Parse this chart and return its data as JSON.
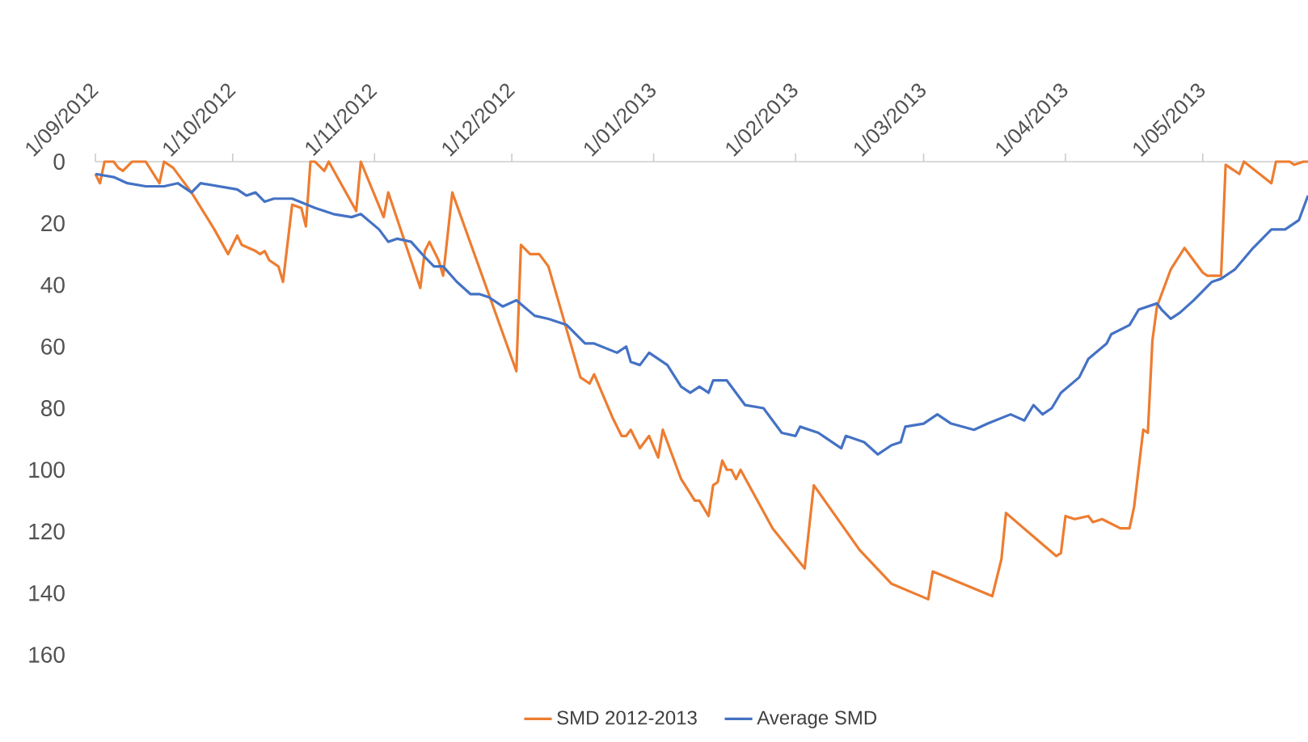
{
  "chart_data": {
    "type": "line",
    "xlim": [
      "2012-09-01",
      "2013-05-24"
    ],
    "ylim": [
      160,
      0
    ],
    "yticks": [
      0,
      20,
      40,
      60,
      80,
      100,
      120,
      140,
      160
    ],
    "xticks": [
      {
        "value": "2012-09-01",
        "label": "1/09/2012"
      },
      {
        "value": "2012-10-01",
        "label": "1/10/2012"
      },
      {
        "value": "2012-11-01",
        "label": "1/11/2012"
      },
      {
        "value": "2012-12-01",
        "label": "1/12/2012"
      },
      {
        "value": "2013-01-01",
        "label": "1/01/2013"
      },
      {
        "value": "2013-02-01",
        "label": "1/02/2013"
      },
      {
        "value": "2013-03-01",
        "label": "1/03/2013"
      },
      {
        "value": "2013-04-01",
        "label": "1/04/2013"
      },
      {
        "value": "2013-05-01",
        "label": "1/05/2013"
      }
    ],
    "legend": "bottom",
    "series": [
      {
        "name": "SMD 2012-2013",
        "color": "#ed7d31",
        "x": [
          "2012-09-01",
          "2012-09-02",
          "2012-09-03",
          "2012-09-05",
          "2012-09-06",
          "2012-09-07",
          "2012-09-09",
          "2012-09-12",
          "2012-09-15",
          "2012-09-16",
          "2012-09-18",
          "2012-09-22",
          "2012-09-27",
          "2012-09-30",
          "2012-10-02",
          "2012-10-03",
          "2012-10-06",
          "2012-10-07",
          "2012-10-08",
          "2012-10-09",
          "2012-10-11",
          "2012-10-12",
          "2012-10-14",
          "2012-10-16",
          "2012-10-17",
          "2012-10-18",
          "2012-10-19",
          "2012-10-21",
          "2012-10-22",
          "2012-10-28",
          "2012-10-29",
          "2012-11-03",
          "2012-11-04",
          "2012-11-11",
          "2012-11-12",
          "2012-11-13",
          "2012-11-15",
          "2012-11-16",
          "2012-11-18",
          "2012-12-02",
          "2012-12-03",
          "2012-12-05",
          "2012-12-07",
          "2012-12-09",
          "2012-12-16",
          "2012-12-18",
          "2012-12-19",
          "2012-12-23",
          "2012-12-25",
          "2012-12-26",
          "2012-12-27",
          "2012-12-29",
          "2012-12-31",
          "2013-01-02",
          "2013-01-03",
          "2013-01-07",
          "2013-01-10",
          "2013-01-11",
          "2013-01-13",
          "2013-01-14",
          "2013-01-15",
          "2013-01-16",
          "2013-01-17",
          "2013-01-18",
          "2013-01-19",
          "2013-01-20",
          "2013-01-27",
          "2013-02-03",
          "2013-02-05",
          "2013-02-15",
          "2013-02-22",
          "2013-03-02",
          "2013-03-03",
          "2013-03-16",
          "2013-03-18",
          "2013-03-19",
          "2013-03-30",
          "2013-03-31",
          "2013-04-01",
          "2013-04-03",
          "2013-04-06",
          "2013-04-07",
          "2013-04-09",
          "2013-04-13",
          "2013-04-15",
          "2013-04-16",
          "2013-04-18",
          "2013-04-19",
          "2013-04-20",
          "2013-04-21",
          "2013-04-24",
          "2013-04-27",
          "2013-05-01",
          "2013-05-02",
          "2013-05-05",
          "2013-05-06",
          "2013-05-09",
          "2013-05-10",
          "2013-05-16",
          "2013-05-17",
          "2013-05-20",
          "2013-05-21",
          "2013-05-23",
          "2013-05-24"
        ],
        "values": [
          4,
          7,
          0,
          0,
          2,
          3,
          0,
          0,
          7,
          0,
          2,
          10,
          22,
          30,
          24,
          27,
          29,
          30,
          29,
          32,
          34,
          39,
          14,
          15,
          21,
          0,
          0,
          3,
          0,
          16,
          0,
          18,
          10,
          41,
          29,
          26,
          32,
          37,
          10,
          68,
          27,
          30,
          30,
          34,
          70,
          72,
          69,
          83,
          89,
          89,
          87,
          93,
          89,
          96,
          87,
          103,
          110,
          110,
          115,
          105,
          104,
          97,
          100,
          100,
          103,
          100,
          119,
          132,
          105,
          126,
          137,
          142,
          133,
          141,
          129,
          114,
          128,
          127,
          115,
          116,
          115,
          117,
          116,
          119,
          119,
          112,
          87,
          88,
          58,
          47,
          35,
          28,
          36,
          37,
          37,
          1,
          4,
          0,
          7,
          0,
          0,
          1,
          0,
          0
        ]
      },
      {
        "name": "Average SMD",
        "color": "#4472c4",
        "x": [
          "2012-09-01",
          "2012-09-05",
          "2012-09-08",
          "2012-09-12",
          "2012-09-16",
          "2012-09-19",
          "2012-09-22",
          "2012-09-24",
          "2012-09-28",
          "2012-10-02",
          "2012-10-04",
          "2012-10-06",
          "2012-10-08",
          "2012-10-10",
          "2012-10-14",
          "2012-10-19",
          "2012-10-23",
          "2012-10-27",
          "2012-10-29",
          "2012-11-02",
          "2012-11-04",
          "2012-11-06",
          "2012-11-09",
          "2012-11-12",
          "2012-11-14",
          "2012-11-16",
          "2012-11-19",
          "2012-11-22",
          "2012-11-24",
          "2012-11-26",
          "2012-11-29",
          "2012-12-02",
          "2012-12-06",
          "2012-12-09",
          "2012-12-13",
          "2012-12-17",
          "2012-12-19",
          "2012-12-24",
          "2012-12-26",
          "2012-12-27",
          "2012-12-29",
          "2012-12-31",
          "2013-01-04",
          "2013-01-07",
          "2013-01-09",
          "2013-01-11",
          "2013-01-13",
          "2013-01-14",
          "2013-01-17",
          "2013-01-21",
          "2013-01-25",
          "2013-01-29",
          "2013-02-01",
          "2013-02-02",
          "2013-02-06",
          "2013-02-11",
          "2013-02-12",
          "2013-02-16",
          "2013-02-19",
          "2013-02-22",
          "2013-02-24",
          "2013-02-25",
          "2013-03-01",
          "2013-03-04",
          "2013-03-07",
          "2013-03-12",
          "2013-03-15",
          "2013-03-20",
          "2013-03-23",
          "2013-03-25",
          "2013-03-27",
          "2013-03-29",
          "2013-03-31",
          "2013-04-04",
          "2013-04-06",
          "2013-04-10",
          "2013-04-11",
          "2013-04-15",
          "2013-04-17",
          "2013-04-21",
          "2013-04-22",
          "2013-04-24",
          "2013-04-26",
          "2013-04-29",
          "2013-05-03",
          "2013-05-05",
          "2013-05-08",
          "2013-05-12",
          "2013-05-16",
          "2013-05-19",
          "2013-05-22",
          "2013-05-24"
        ],
        "values": [
          4,
          5,
          7,
          8,
          8,
          7,
          10,
          7,
          8,
          9,
          11,
          10,
          13,
          12,
          12,
          15,
          17,
          18,
          17,
          22,
          26,
          25,
          26,
          31,
          34,
          34,
          39,
          43,
          43,
          44,
          47,
          45,
          50,
          51,
          53,
          59,
          59,
          62,
          60,
          65,
          66,
          62,
          66,
          73,
          75,
          73,
          75,
          71,
          71,
          79,
          80,
          88,
          89,
          86,
          88,
          93,
          89,
          91,
          95,
          92,
          91,
          86,
          85,
          82,
          85,
          87,
          85,
          82,
          84,
          79,
          82,
          80,
          75,
          70,
          64,
          59,
          56,
          53,
          48,
          46,
          48,
          51,
          49,
          45,
          39,
          38,
          35,
          28,
          22,
          22,
          19,
          11
        ]
      }
    ]
  }
}
